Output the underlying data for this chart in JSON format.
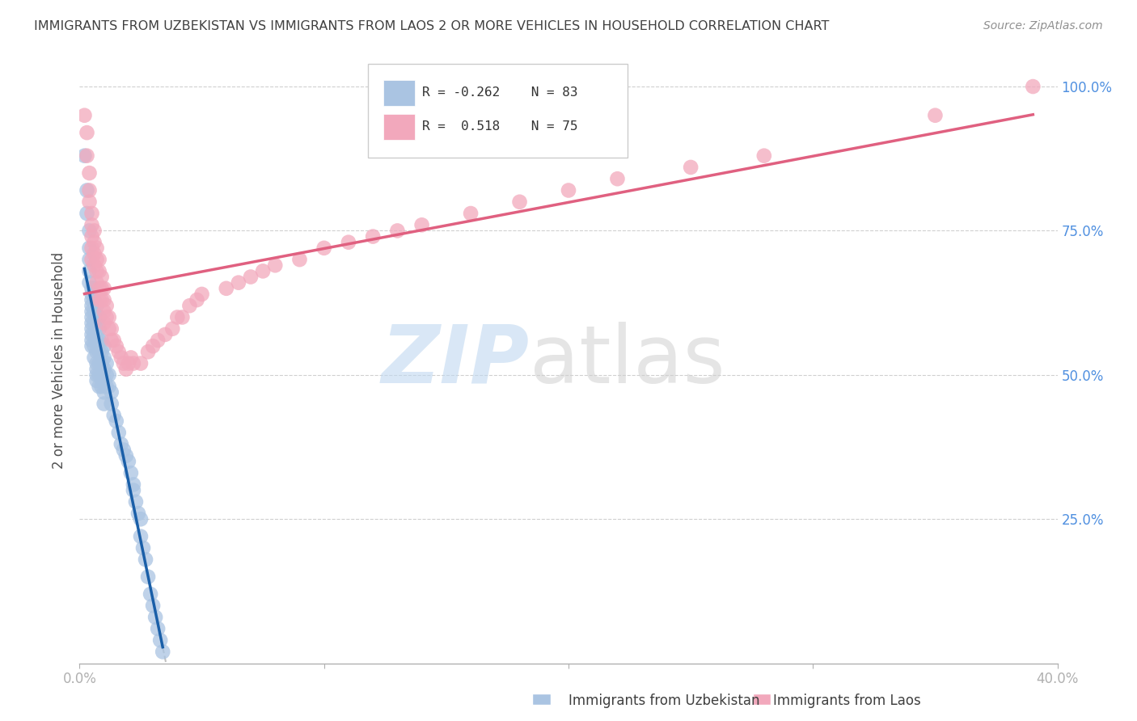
{
  "title": "IMMIGRANTS FROM UZBEKISTAN VS IMMIGRANTS FROM LAOS 2 OR MORE VEHICLES IN HOUSEHOLD CORRELATION CHART",
  "source": "Source: ZipAtlas.com",
  "ylabel": "2 or more Vehicles in Household",
  "xlim": [
    0.0,
    0.4
  ],
  "ylim": [
    0.0,
    1.05
  ],
  "uzbekistan_color": "#aac4e2",
  "laos_color": "#f2a8bc",
  "uzbekistan_line_color": "#1a5fa8",
  "laos_line_color": "#e06080",
  "dashed_line_color": "#c0c0c0",
  "background_color": "#ffffff",
  "grid_color": "#d0d0d0",
  "title_color": "#404040",
  "axis_label_color": "#505050",
  "tick_color_right": "#5090e0",
  "tick_color_bottom": "#5090e0",
  "uzbekistan_x": [
    0.002,
    0.003,
    0.003,
    0.004,
    0.004,
    0.004,
    0.004,
    0.004,
    0.005,
    0.005,
    0.005,
    0.005,
    0.005,
    0.005,
    0.005,
    0.005,
    0.005,
    0.005,
    0.005,
    0.006,
    0.006,
    0.006,
    0.006,
    0.006,
    0.006,
    0.006,
    0.007,
    0.007,
    0.007,
    0.007,
    0.007,
    0.007,
    0.007,
    0.007,
    0.007,
    0.008,
    0.008,
    0.008,
    0.008,
    0.008,
    0.008,
    0.008,
    0.009,
    0.009,
    0.009,
    0.009,
    0.009,
    0.01,
    0.01,
    0.01,
    0.01,
    0.01,
    0.01,
    0.011,
    0.011,
    0.011,
    0.012,
    0.012,
    0.013,
    0.013,
    0.014,
    0.015,
    0.016,
    0.017,
    0.018,
    0.019,
    0.02,
    0.021,
    0.022,
    0.022,
    0.023,
    0.024,
    0.025,
    0.025,
    0.026,
    0.027,
    0.028,
    0.029,
    0.03,
    0.031,
    0.032,
    0.033,
    0.034
  ],
  "uzbekistan_y": [
    0.88,
    0.82,
    0.78,
    0.75,
    0.72,
    0.7,
    0.68,
    0.66,
    0.65,
    0.64,
    0.63,
    0.62,
    0.61,
    0.6,
    0.59,
    0.58,
    0.57,
    0.56,
    0.55,
    0.65,
    0.63,
    0.61,
    0.59,
    0.57,
    0.55,
    0.53,
    0.62,
    0.6,
    0.58,
    0.56,
    0.54,
    0.52,
    0.51,
    0.5,
    0.49,
    0.6,
    0.58,
    0.56,
    0.54,
    0.52,
    0.5,
    0.48,
    0.56,
    0.54,
    0.52,
    0.5,
    0.48,
    0.55,
    0.53,
    0.51,
    0.49,
    0.47,
    0.45,
    0.52,
    0.5,
    0.48,
    0.5,
    0.48,
    0.47,
    0.45,
    0.43,
    0.42,
    0.4,
    0.38,
    0.37,
    0.36,
    0.35,
    0.33,
    0.31,
    0.3,
    0.28,
    0.26,
    0.25,
    0.22,
    0.2,
    0.18,
    0.15,
    0.12,
    0.1,
    0.08,
    0.06,
    0.04,
    0.02
  ],
  "laos_x": [
    0.002,
    0.003,
    0.003,
    0.004,
    0.004,
    0.004,
    0.005,
    0.005,
    0.005,
    0.005,
    0.005,
    0.006,
    0.006,
    0.006,
    0.006,
    0.007,
    0.007,
    0.007,
    0.007,
    0.008,
    0.008,
    0.008,
    0.008,
    0.009,
    0.009,
    0.009,
    0.01,
    0.01,
    0.01,
    0.01,
    0.011,
    0.011,
    0.012,
    0.012,
    0.013,
    0.013,
    0.014,
    0.015,
    0.016,
    0.017,
    0.018,
    0.019,
    0.02,
    0.021,
    0.022,
    0.025,
    0.028,
    0.03,
    0.032,
    0.035,
    0.038,
    0.04,
    0.042,
    0.045,
    0.048,
    0.05,
    0.06,
    0.065,
    0.07,
    0.075,
    0.08,
    0.09,
    0.1,
    0.11,
    0.12,
    0.13,
    0.14,
    0.16,
    0.18,
    0.2,
    0.22,
    0.25,
    0.28,
    0.35,
    0.39
  ],
  "laos_y": [
    0.95,
    0.92,
    0.88,
    0.85,
    0.82,
    0.8,
    0.78,
    0.76,
    0.74,
    0.72,
    0.7,
    0.75,
    0.73,
    0.71,
    0.69,
    0.72,
    0.7,
    0.68,
    0.66,
    0.7,
    0.68,
    0.65,
    0.63,
    0.67,
    0.65,
    0.63,
    0.65,
    0.63,
    0.61,
    0.59,
    0.62,
    0.6,
    0.6,
    0.58,
    0.58,
    0.56,
    0.56,
    0.55,
    0.54,
    0.53,
    0.52,
    0.51,
    0.52,
    0.53,
    0.52,
    0.52,
    0.54,
    0.55,
    0.56,
    0.57,
    0.58,
    0.6,
    0.6,
    0.62,
    0.63,
    0.64,
    0.65,
    0.66,
    0.67,
    0.68,
    0.69,
    0.7,
    0.72,
    0.73,
    0.74,
    0.75,
    0.76,
    0.78,
    0.8,
    0.82,
    0.84,
    0.86,
    0.88,
    0.95,
    1.0
  ],
  "watermark_zip_color": "#c0d8f0",
  "watermark_atlas_color": "#d0d0d0"
}
